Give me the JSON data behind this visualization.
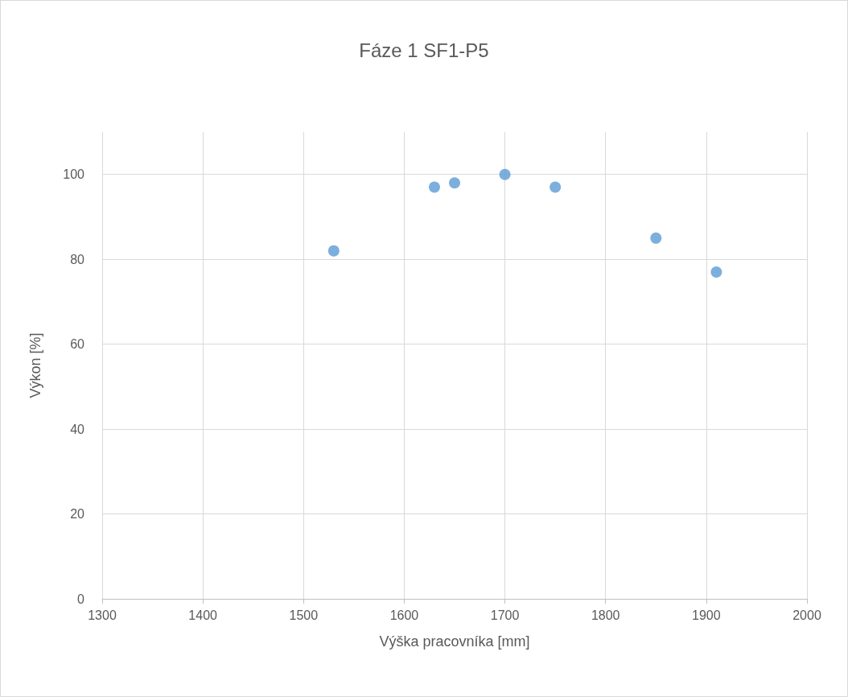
{
  "chart_data": {
    "type": "scatter",
    "title": "Fáze 1 SF1-P5",
    "xlabel": "Výška pracovníka [mm]",
    "ylabel": "Výkon [%]",
    "x": [
      1530,
      1630,
      1650,
      1700,
      1750,
      1850,
      1910
    ],
    "values": [
      82,
      97,
      98,
      100,
      97,
      85,
      77
    ],
    "color": "#5b9bd5",
    "marker": "circle",
    "xlim": [
      1300,
      2000
    ],
    "xticks": [
      1300,
      1400,
      1500,
      1600,
      1700,
      1800,
      1900,
      2000
    ],
    "ylim": [
      0,
      110
    ],
    "yticks": [
      0,
      20,
      40,
      60,
      80,
      100
    ],
    "grid": true
  }
}
